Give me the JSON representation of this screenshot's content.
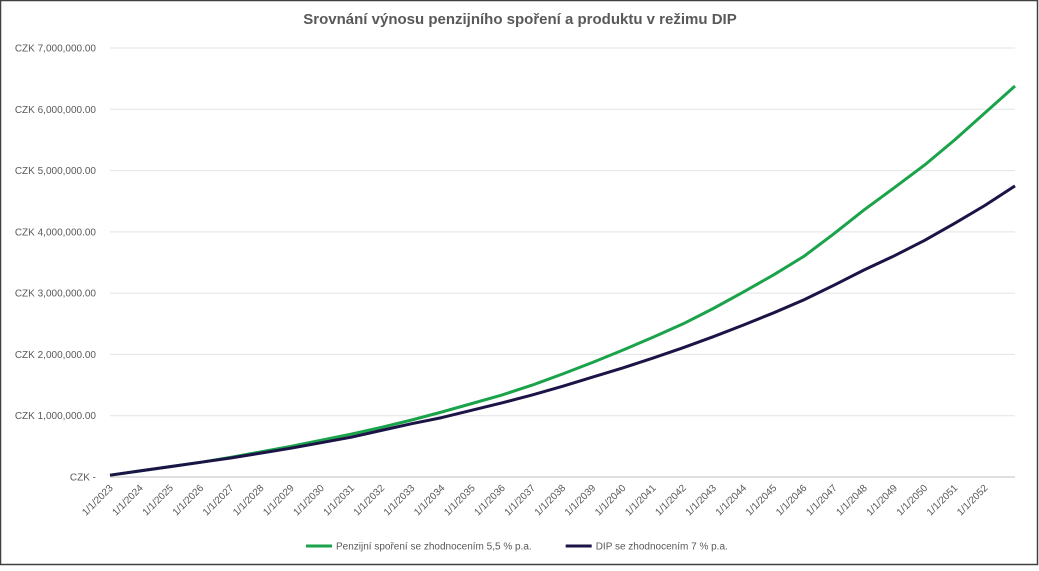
{
  "chart_data": {
    "type": "line",
    "title": "Srovnání výnosu penzijního spoření a produktu v režimu DIP",
    "categories": [
      "1/1/2023",
      "1/1/2024",
      "1/1/2025",
      "1/1/2026",
      "1/1/2027",
      "1/1/2028",
      "1/1/2029",
      "1/1/2030",
      "1/1/2031",
      "1/1/2032",
      "1/1/2033",
      "1/1/2034",
      "1/1/2035",
      "1/1/2036",
      "1/1/2037",
      "1/1/2038",
      "1/1/2039",
      "1/1/2040",
      "1/1/2041",
      "1/1/2042",
      "1/1/2043",
      "1/1/2044",
      "1/1/2045",
      "1/1/2046",
      "1/1/2047",
      "1/1/2048",
      "1/1/2049",
      "1/1/2050",
      "1/1/2051",
      "1/1/2052",
      null
    ],
    "series": [
      {
        "name": "Penzijní spoření se zhodnocením 5,5 % p.a.",
        "color": "#1aa34a",
        "values": [
          30000,
          100000,
          170000,
          240000,
          320000,
          410000,
          500000,
          600000,
          700000,
          810000,
          930000,
          1060000,
          1200000,
          1340000,
          1500000,
          1680000,
          1870000,
          2070000,
          2280000,
          2500000,
          2750000,
          3020000,
          3300000,
          3600000,
          3970000,
          4360000,
          4720000,
          5090000,
          5500000,
          5940000,
          6380000
        ]
      },
      {
        "name": "DIP se zhodnocením 7 % p.a.",
        "color": "#1c1446",
        "values": [
          30000,
          100000,
          170000,
          240000,
          310000,
          390000,
          470000,
          560000,
          650000,
          760000,
          870000,
          970000,
          1090000,
          1210000,
          1340000,
          1480000,
          1630000,
          1780000,
          1940000,
          2110000,
          2290000,
          2480000,
          2680000,
          2890000,
          3130000,
          3380000,
          3610000,
          3860000,
          4140000,
          4430000,
          4750000
        ]
      }
    ],
    "ylim": [
      0,
      7000000
    ],
    "yticks": [
      {
        "value": 0,
        "label": "CZK -"
      },
      {
        "value": 1000000,
        "label": "CZK 1,000,000.00"
      },
      {
        "value": 2000000,
        "label": "CZK 2,000,000.00"
      },
      {
        "value": 3000000,
        "label": "CZK 3,000,000.00"
      },
      {
        "value": 4000000,
        "label": "CZK 4,000,000.00"
      },
      {
        "value": 5000000,
        "label": "CZK 5,000,000.00"
      },
      {
        "value": 6000000,
        "label": "CZK 6,000,000.00"
      },
      {
        "value": 7000000,
        "label": "CZK 7,000,000.00"
      }
    ],
    "grid": true,
    "legend": "bottom"
  }
}
